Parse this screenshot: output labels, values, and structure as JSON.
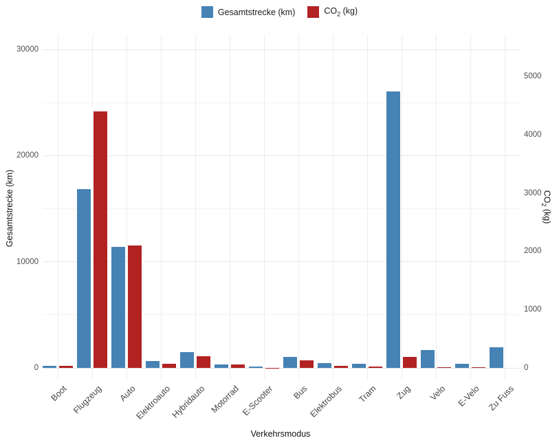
{
  "labels": {
    "distance": "Gesamtstrecke (km)",
    "co2_pre": "CO",
    "co2_sub": "2",
    "co2_post": " (kg)",
    "x_title": "Verkehrsmodus"
  },
  "chart_data": {
    "type": "bar",
    "title": "",
    "xlabel": "Verkehrsmodus",
    "legend_position": "top",
    "grid": true,
    "categories": [
      "Boot",
      "Flugzeug",
      "Auto",
      "Elektroauto",
      "Hybridauto",
      "Motorrad",
      "E-Scooter",
      "Bus",
      "Elektrobus",
      "Tram",
      "Zug",
      "Velo",
      "E-Velo",
      "Zu Fuss"
    ],
    "series": [
      {
        "name": "Gesamtstrecke (km)",
        "color": "#4682B4",
        "axis": "left",
        "values": [
          200,
          16850,
          11400,
          680,
          1470,
          330,
          100,
          1020,
          450,
          390,
          26050,
          1670,
          390,
          1950
        ]
      },
      {
        "name": "CO2 (kg)",
        "color": "#B22222",
        "axis": "right",
        "values": [
          30,
          4400,
          2100,
          70,
          200,
          60,
          5,
          130,
          35,
          25,
          190,
          10,
          10,
          0
        ]
      }
    ],
    "left_axis": {
      "title": "Gesamtstrecke (km)",
      "min": 0,
      "max": 30000,
      "minor_step": 5000,
      "tick_values": [
        0,
        10000,
        20000,
        30000
      ],
      "tick_labels": [
        "0",
        "10000",
        "20000",
        "30000"
      ]
    },
    "right_axis": {
      "title": "CO2 (kg)",
      "min": 0,
      "max": 5000,
      "tick_values": [
        0,
        1000,
        2000,
        3000,
        4000,
        5000
      ],
      "tick_labels": [
        "0",
        "1000",
        "2000",
        "3000",
        "4000",
        "5000"
      ]
    }
  }
}
